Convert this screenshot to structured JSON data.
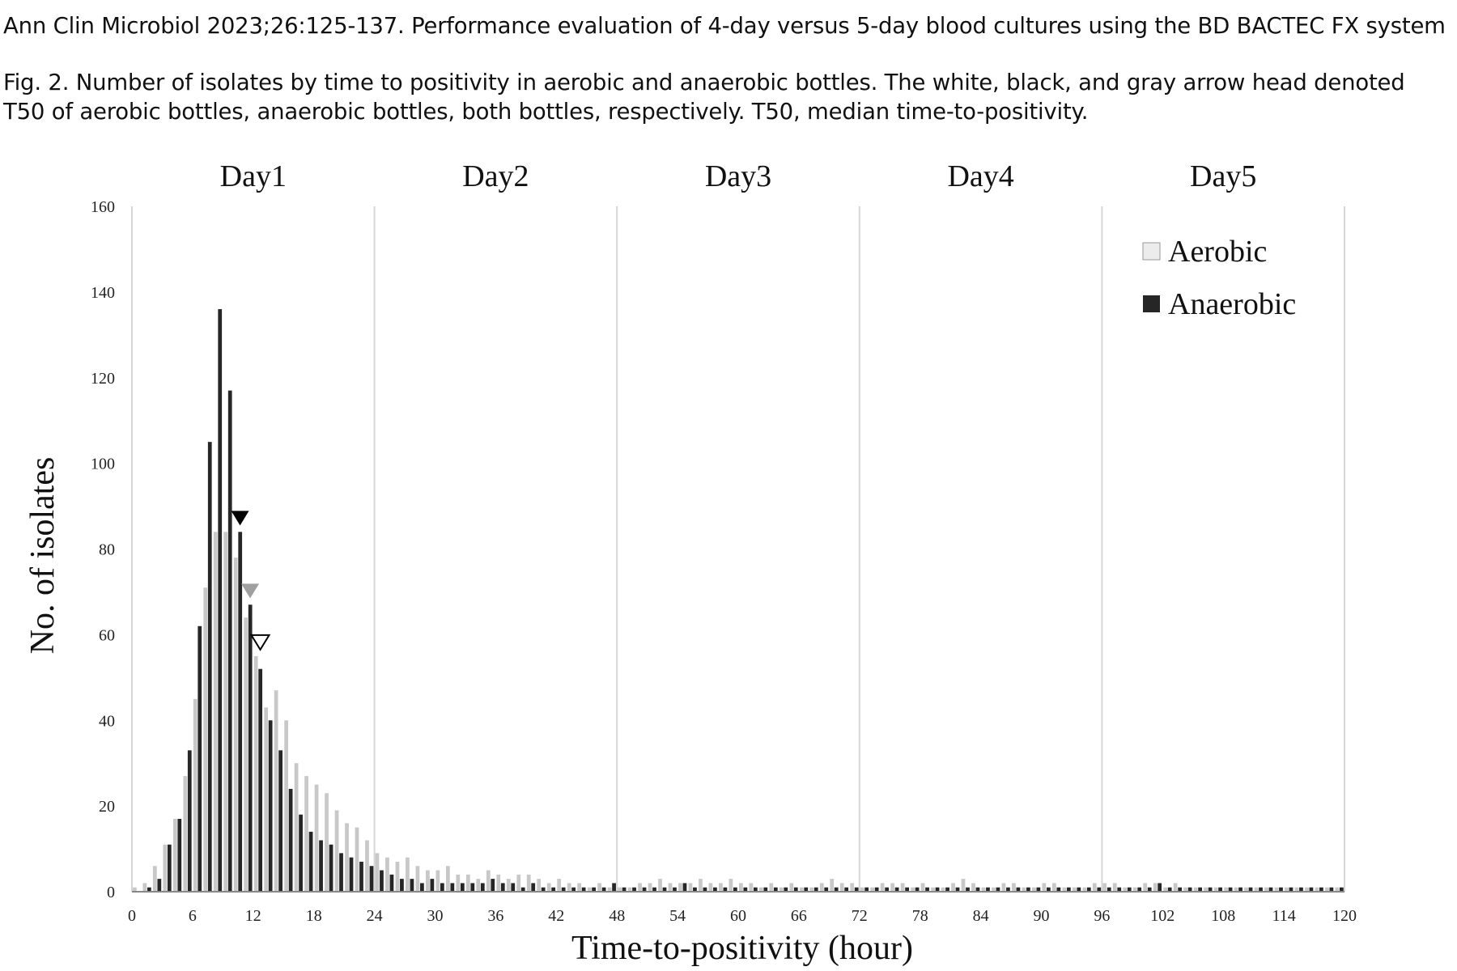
{
  "header": {
    "source": "Ann Clin Microbiol 2023;26:125-137. Performance evaluation of 4-day versus 5-day blood cultures using the BD BACTEC FX system",
    "caption_line1": "Fig. 2. Number of isolates by time to positivity in aerobic and anaerobic bottles. The white, black, and gray arrow head denoted",
    "caption_line2": "T50 of aerobic bottles, anaerobic bottles, both bottles, respectively. T50, median time-to-positivity."
  },
  "chart_data": {
    "type": "bar",
    "title": "",
    "xlabel": "Time-to-positivity (hour)",
    "ylabel": "No. of isolates",
    "xlim": [
      0,
      120
    ],
    "ylim": [
      0,
      160
    ],
    "x_ticks": [
      0,
      6,
      12,
      18,
      24,
      30,
      36,
      42,
      48,
      54,
      60,
      66,
      72,
      78,
      84,
      90,
      96,
      102,
      108,
      114,
      120
    ],
    "y_ticks": [
      0,
      20,
      40,
      60,
      80,
      100,
      120,
      140,
      160
    ],
    "day_labels": [
      "Day1",
      "Day2",
      "Day3",
      "Day4",
      "Day5"
    ],
    "day_boundaries": [
      24,
      48,
      72,
      96,
      120
    ],
    "legend": {
      "position": "top-right",
      "entries": [
        "Aerobic",
        "Anaerobic"
      ]
    },
    "colors": {
      "aerobic": "#c8c8c8",
      "anaerobic": "#262626",
      "t50_both": "#a0a0a0",
      "grid": "#d6d6d6",
      "axis": "#888888"
    },
    "x": [
      1,
      2,
      3,
      4,
      5,
      6,
      7,
      8,
      9,
      10,
      11,
      12,
      13,
      14,
      15,
      16,
      17,
      18,
      19,
      20,
      21,
      22,
      23,
      24,
      25,
      26,
      27,
      28,
      29,
      30,
      31,
      32,
      33,
      34,
      35,
      36,
      37,
      38,
      39,
      40,
      41,
      42,
      43,
      44,
      45,
      46,
      47,
      48,
      49,
      50,
      51,
      52,
      53,
      54,
      55,
      56,
      57,
      58,
      59,
      60,
      61,
      62,
      63,
      64,
      65,
      66,
      67,
      68,
      69,
      70,
      71,
      72,
      73,
      74,
      75,
      76,
      77,
      78,
      79,
      80,
      81,
      82,
      83,
      84,
      85,
      86,
      87,
      88,
      89,
      90,
      91,
      92,
      93,
      94,
      95,
      96,
      97,
      98,
      99,
      100,
      101,
      102,
      103,
      104,
      105,
      106,
      107,
      108,
      109,
      110,
      111,
      112,
      113,
      114,
      115,
      116,
      117,
      118,
      119,
      120
    ],
    "series": [
      {
        "name": "Aerobic",
        "values": [
          1,
          2,
          6,
          11,
          17,
          27,
          45,
          71,
          84,
          84,
          78,
          64,
          55,
          43,
          47,
          40,
          30,
          27,
          25,
          23,
          19,
          16,
          15,
          12,
          9,
          8,
          7,
          8,
          6,
          5,
          5,
          6,
          4,
          4,
          3,
          5,
          4,
          3,
          4,
          4,
          3,
          2,
          3,
          2,
          2,
          1,
          2,
          1,
          1,
          1,
          2,
          2,
          3,
          2,
          2,
          2,
          3,
          2,
          2,
          3,
          2,
          2,
          1,
          2,
          1,
          2,
          1,
          1,
          2,
          3,
          2,
          2,
          1,
          1,
          2,
          2,
          2,
          1,
          2,
          1,
          1,
          2,
          3,
          2,
          1,
          1,
          2,
          2,
          1,
          1,
          2,
          2,
          1,
          1,
          1,
          2,
          2,
          2,
          1,
          1,
          2,
          2,
          1,
          2,
          1,
          1,
          1,
          1,
          1,
          1,
          1,
          1,
          1,
          1,
          1,
          1,
          1,
          1,
          1,
          1
        ]
      },
      {
        "name": "Anaerobic",
        "values": [
          0,
          1,
          3,
          11,
          17,
          33,
          62,
          105,
          136,
          117,
          84,
          67,
          52,
          40,
          33,
          24,
          18,
          14,
          12,
          11,
          9,
          8,
          7,
          6,
          5,
          4,
          3,
          3,
          2,
          3,
          2,
          2,
          2,
          2,
          2,
          3,
          2,
          2,
          1,
          2,
          1,
          1,
          1,
          1,
          1,
          1,
          1,
          2,
          1,
          1,
          1,
          1,
          1,
          1,
          2,
          1,
          1,
          1,
          1,
          1,
          1,
          1,
          1,
          1,
          1,
          1,
          1,
          1,
          1,
          1,
          1,
          1,
          1,
          1,
          1,
          1,
          1,
          1,
          1,
          1,
          1,
          1,
          1,
          1,
          1,
          1,
          1,
          1,
          1,
          1,
          1,
          1,
          1,
          1,
          1,
          1,
          1,
          1,
          1,
          1,
          1,
          2,
          1,
          1,
          1,
          1,
          1,
          1,
          1,
          1,
          1,
          1,
          1,
          1,
          1,
          1,
          1,
          1,
          1,
          1
        ]
      }
    ],
    "t50_markers": [
      {
        "series": "Aerobic",
        "x": 13,
        "style": "white"
      },
      {
        "series": "Anaerobic",
        "x": 11,
        "style": "black"
      },
      {
        "series": "Both",
        "x": 12,
        "style": "gray"
      }
    ]
  }
}
